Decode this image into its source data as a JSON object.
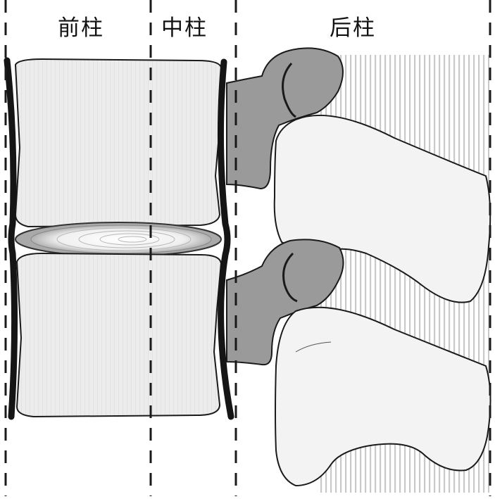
{
  "figure": {
    "columns": [
      {
        "id": "anterior",
        "label": "前柱"
      },
      {
        "id": "middle",
        "label": "中柱"
      },
      {
        "id": "posterior",
        "label": "后柱"
      }
    ],
    "colors": {
      "vertebral_body": "#ededed",
      "pedicle": "#9a9a9a",
      "ligament": "#151515",
      "disc_outer": "#a8a8a8",
      "disc_inner": "#f6f6f6",
      "process": "#f4f4f4",
      "hatch": "#c8c8c8",
      "divider": "#1a1a1a"
    }
  }
}
